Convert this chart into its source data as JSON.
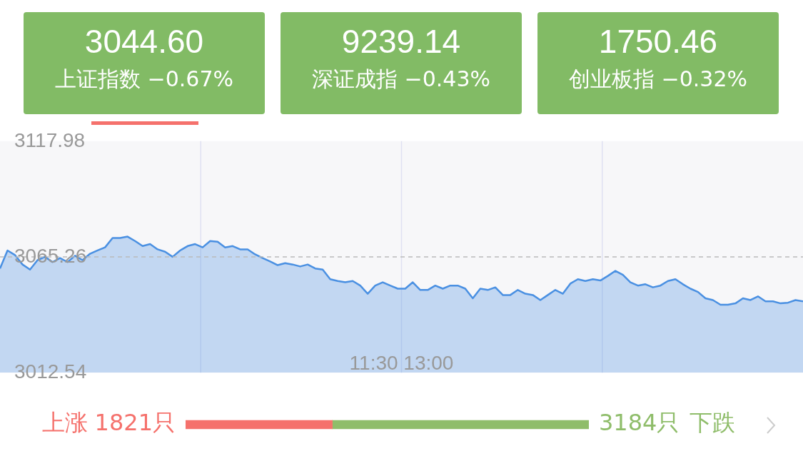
{
  "chart_data": [
    {
      "type": "other",
      "annotations": [
        "3044.60",
        "上证指数",
        "−0.67%",
        "9239.14",
        "深证成指",
        "−0.43%",
        "1750.46",
        "创业板指",
        "−0.32%"
      ],
      "color": "#82bb65"
    },
    {
      "type": "area",
      "categories": [
        null,
        null,
        null,
        null,
        null,
        null,
        null,
        null,
        null,
        null,
        null,
        null,
        null,
        null,
        null,
        null,
        null,
        null,
        null,
        null,
        null,
        null,
        null,
        null,
        null,
        null,
        null,
        null,
        null,
        null,
        null,
        null,
        null,
        null,
        null,
        null,
        null,
        null,
        null,
        null,
        null,
        null,
        null,
        null,
        null,
        null,
        null,
        null,
        null,
        null,
        null,
        null,
        null,
        null,
        null,
        null,
        null,
        null,
        null,
        null,
        null,
        null,
        null,
        null,
        null,
        null,
        null,
        null,
        null,
        null,
        null,
        null,
        null,
        null,
        null,
        null,
        null,
        null,
        null,
        null,
        null,
        null,
        null,
        null,
        null,
        null,
        null,
        null,
        null,
        null,
        null,
        null,
        null,
        null,
        null,
        null,
        null,
        null,
        null,
        null,
        null,
        null,
        null,
        null,
        null,
        null,
        null,
        null
      ],
      "annotations": [
        "11:30 13:00"
      ],
      "series": [
        {
          "color": "#4a90e2",
          "values": [
            3060.0,
            3068.2,
            3066.1,
            3061.8,
            3059.5,
            3063.8,
            3065.3,
            3062.9,
            3064.7,
            3062.9,
            3065.8,
            3063.8,
            3066.7,
            3068.2,
            3069.6,
            3073.9,
            3073.9,
            3074.5,
            3072.5,
            3070.2,
            3071.1,
            3068.7,
            3067.6,
            3065.3,
            3068.2,
            3070.2,
            3071.1,
            3069.6,
            3072.5,
            3072.2,
            3069.6,
            3070.2,
            3068.7,
            3068.7,
            3066.4,
            3064.7,
            3063.2,
            3061.5,
            3062.4,
            3061.8,
            3060.9,
            3061.8,
            3060.0,
            3059.5,
            3055.1,
            3054.3,
            3053.7,
            3054.3,
            3052.2,
            3048.5,
            3052.2,
            3053.7,
            3052.2,
            3050.8,
            3050.8,
            3053.7,
            3050.2,
            3050.2,
            3052.2,
            3050.8,
            3052.2,
            3052.2,
            3050.8,
            3046.4,
            3050.8,
            3050.2,
            3051.4,
            3047.9,
            3047.9,
            3050.2,
            3048.5,
            3047.9,
            3045.6,
            3047.9,
            3050.2,
            3048.5,
            3053.1,
            3055.1,
            3054.3,
            3055.1,
            3054.5,
            3056.6,
            3058.9,
            3057.1,
            3053.7,
            3052.2,
            3052.8,
            3051.4,
            3052.2,
            3054.3,
            3055.1,
            3052.8,
            3050.8,
            3049.3,
            3046.4,
            3045.6,
            3043.5,
            3043.5,
            3044.1,
            3046.4,
            3045.6,
            3047.3,
            3045.0,
            3045.0,
            3044.1,
            3044.4,
            3045.6,
            3045.0
          ]
        }
      ],
      "ylim": [
        3012.54,
        3117.98
      ],
      "yticks": [
        3012.54,
        3065.26,
        3117.98
      ],
      "ref_lines": [
        {
          "axis": "y",
          "value": 3065.26,
          "color": "#bbbbbb",
          "line_style": "dashed"
        }
      ]
    },
    {
      "type": "bar",
      "orientation": "horizontal",
      "stacked": true,
      "categories": [
        null
      ],
      "tick_labels": false,
      "xlim": [
        0,
        5005
      ],
      "series": [
        {
          "name": "上涨",
          "color": "#f5716c",
          "values": [
            1821
          ],
          "value_labels": [
            "1821只"
          ]
        },
        {
          "name": "下跌",
          "color": "#8fbd6a",
          "values": [
            3184
          ],
          "value_labels": [
            "3184只"
          ]
        }
      ]
    }
  ]
}
